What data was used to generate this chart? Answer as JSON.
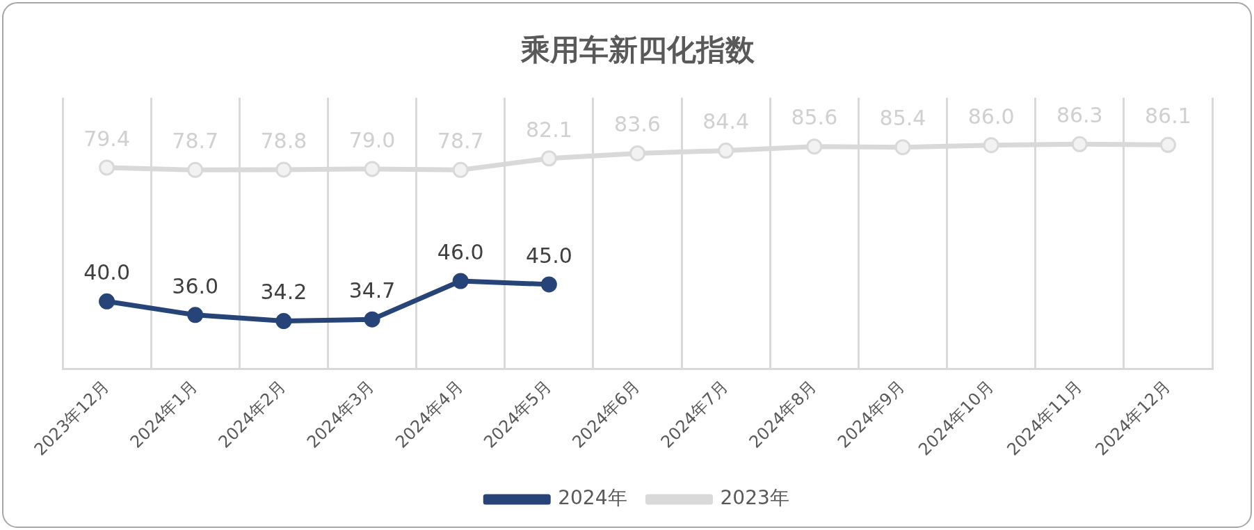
{
  "chart_data": {
    "type": "line",
    "title": "乘用车新四化指数",
    "categories": [
      "2023年12月",
      "2024年1月",
      "2024年2月",
      "2024年3月",
      "2024年4月",
      "2024年5月",
      "2024年6月",
      "2024年7月",
      "2024年8月",
      "2024年9月",
      "2024年10月",
      "2024年11月",
      "2024年12月"
    ],
    "series": [
      {
        "name": "2024年",
        "color": "#264478",
        "values": [
          40.0,
          36.0,
          34.2,
          34.7,
          46.0,
          45.0,
          null,
          null,
          null,
          null,
          null,
          null,
          null
        ],
        "value_labels": [
          "40.0",
          "36.0",
          "34.2",
          "34.7",
          "46.0",
          "45.0",
          null,
          null,
          null,
          null,
          null,
          null,
          null
        ]
      },
      {
        "name": "2023年",
        "color": "#d9d9d9",
        "values": [
          79.4,
          78.7,
          78.8,
          79.0,
          78.7,
          82.1,
          83.6,
          84.4,
          85.6,
          85.4,
          86.0,
          86.3,
          86.1
        ],
        "value_labels": [
          "79.4",
          "78.7",
          "78.8",
          "79.0",
          "78.7",
          "82.1",
          "83.6",
          "84.4",
          "85.6",
          "85.4",
          "86.0",
          "86.3",
          "86.1"
        ]
      }
    ],
    "grid": "x",
    "legend": "bottom",
    "marker": "circle",
    "line_style": "solid",
    "tick_labels": "x"
  }
}
